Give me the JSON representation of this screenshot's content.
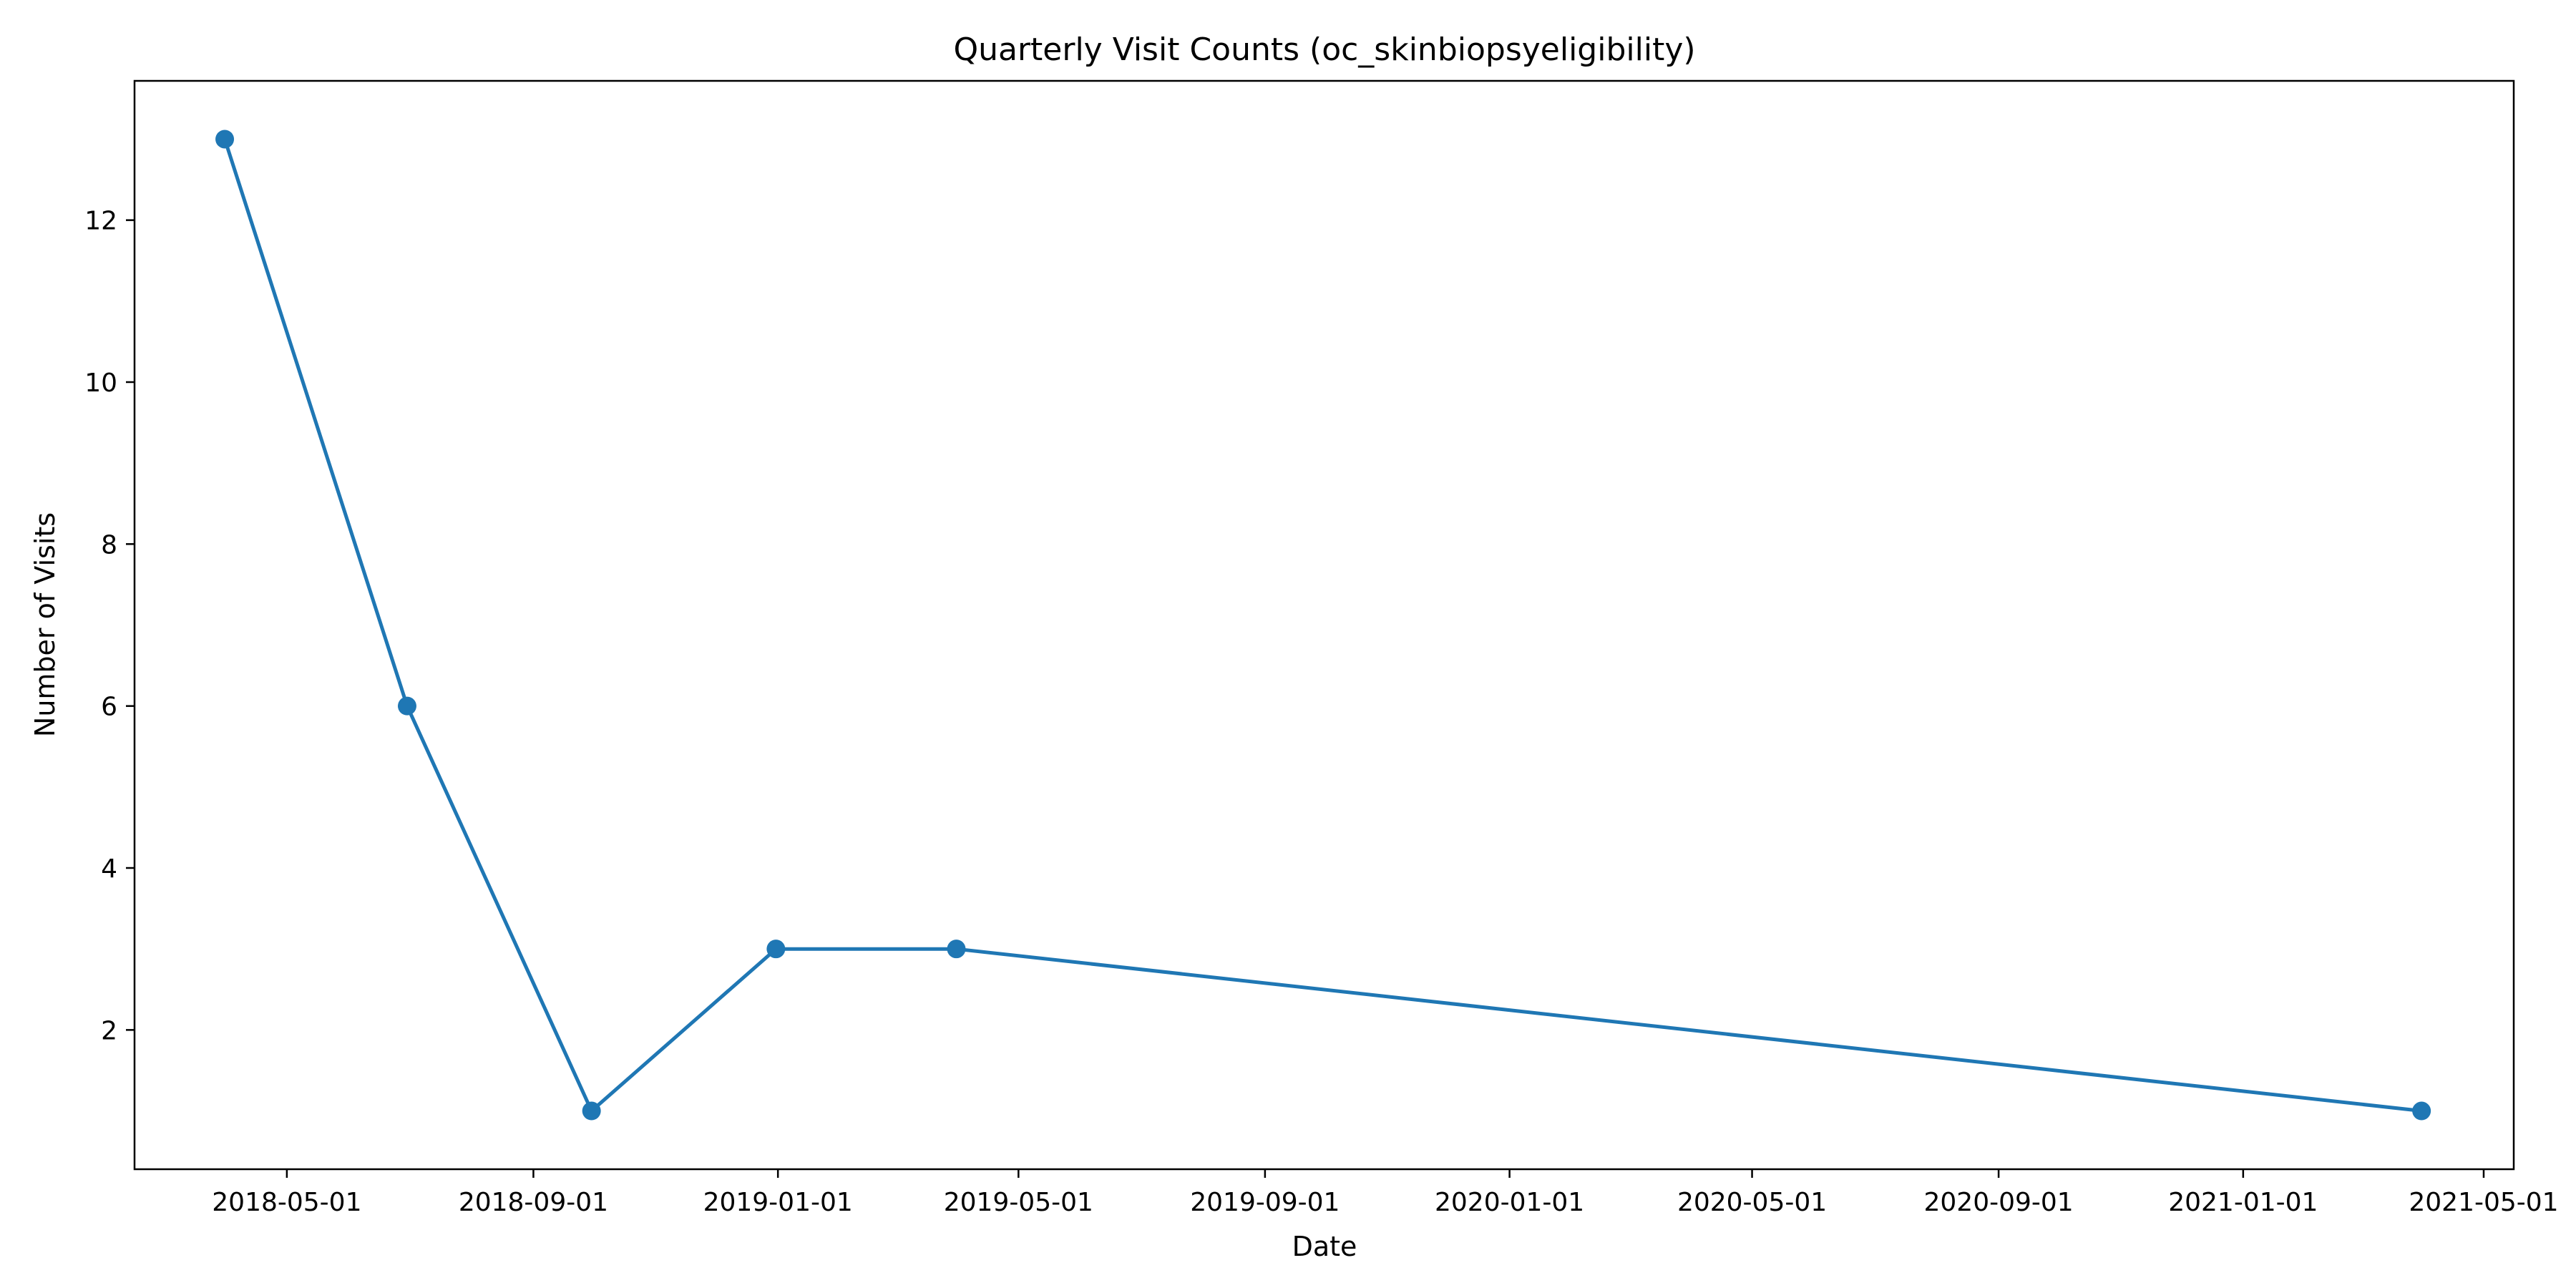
{
  "chart_data": {
    "type": "line",
    "title": "Quarterly Visit Counts (oc_skinbiopsyeligibility)",
    "xlabel": "Date",
    "ylabel": "Number of Visits",
    "x_axis_type": "date",
    "xlim": [
      "2018-02-14",
      "2021-05-16"
    ],
    "ylim": [
      0.28,
      13.72
    ],
    "x_ticks": [
      "2018-05-01",
      "2018-09-01",
      "2019-01-01",
      "2019-05-01",
      "2019-09-01",
      "2020-01-01",
      "2020-05-01",
      "2020-09-01",
      "2021-01-01",
      "2021-05-01"
    ],
    "y_ticks": [
      2,
      4,
      6,
      8,
      10,
      12
    ],
    "grid": false,
    "legend": "none",
    "series": [
      {
        "color": "#1f77b4",
        "marker": "circle",
        "points": [
          {
            "x": "2018-03-31",
            "y": 13
          },
          {
            "x": "2018-06-30",
            "y": 6
          },
          {
            "x": "2018-09-30",
            "y": 1
          },
          {
            "x": "2018-12-31",
            "y": 3
          },
          {
            "x": "2019-03-31",
            "y": 3
          },
          {
            "x": "2021-03-31",
            "y": 1
          }
        ]
      }
    ]
  }
}
